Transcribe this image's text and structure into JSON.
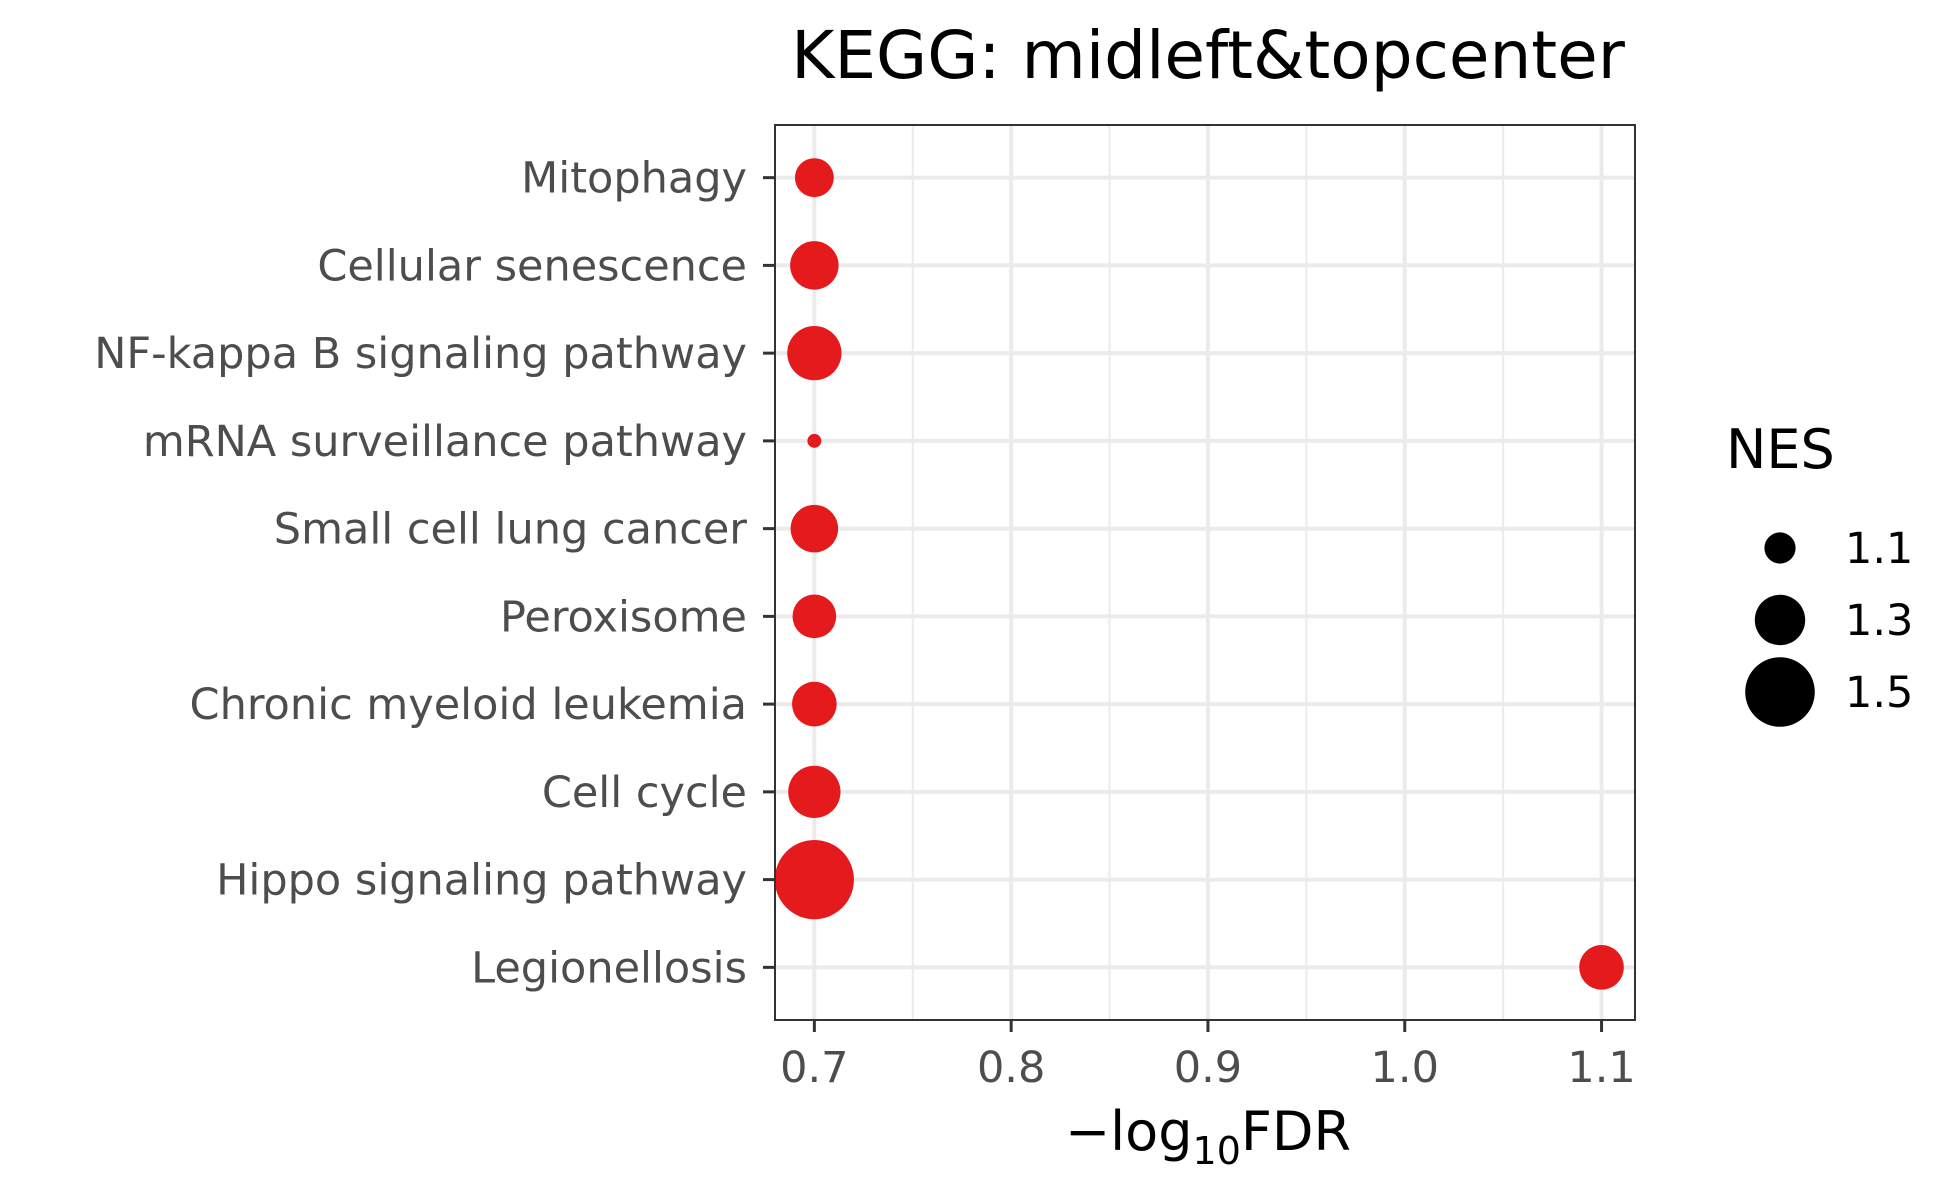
{
  "chart_data": {
    "type": "scatter",
    "title": "KEGG: midleft&topcenter",
    "xlabel": {
      "prefix": "−log",
      "sub": "10",
      "suffix": "FDR"
    },
    "ylabel": "",
    "xlim": [
      0.68,
      1.117
    ],
    "xticks": [
      0.7,
      0.8,
      0.9,
      1.0,
      1.1
    ],
    "xtick_labels": [
      "0.7",
      "0.8",
      "0.9",
      "1.0",
      "1.1"
    ],
    "categories": [
      "Mitophagy",
      "Cellular senescence",
      "NF-kappa B signaling pathway",
      "mRNA surveillance pathway",
      "Small cell lung cancer",
      "Peroxisome",
      "Chronic myeloid leukemia",
      "Cell cycle",
      "Hippo signaling pathway",
      "Legionellosis"
    ],
    "x": [
      0.7,
      0.7,
      0.7,
      0.7,
      0.7,
      0.7,
      0.7,
      0.7,
      0.7,
      1.1
    ],
    "nes": [
      1.18,
      1.28,
      1.34,
      0.92,
      1.27,
      1.23,
      1.24,
      1.32,
      1.6,
      1.24
    ],
    "grid": true,
    "point_color": "#e41a1c",
    "legend": {
      "title": "NES",
      "position": "right",
      "labels": [
        "1.1",
        "1.3",
        "1.5"
      ],
      "values": [
        1.1,
        1.3,
        1.5
      ]
    }
  }
}
